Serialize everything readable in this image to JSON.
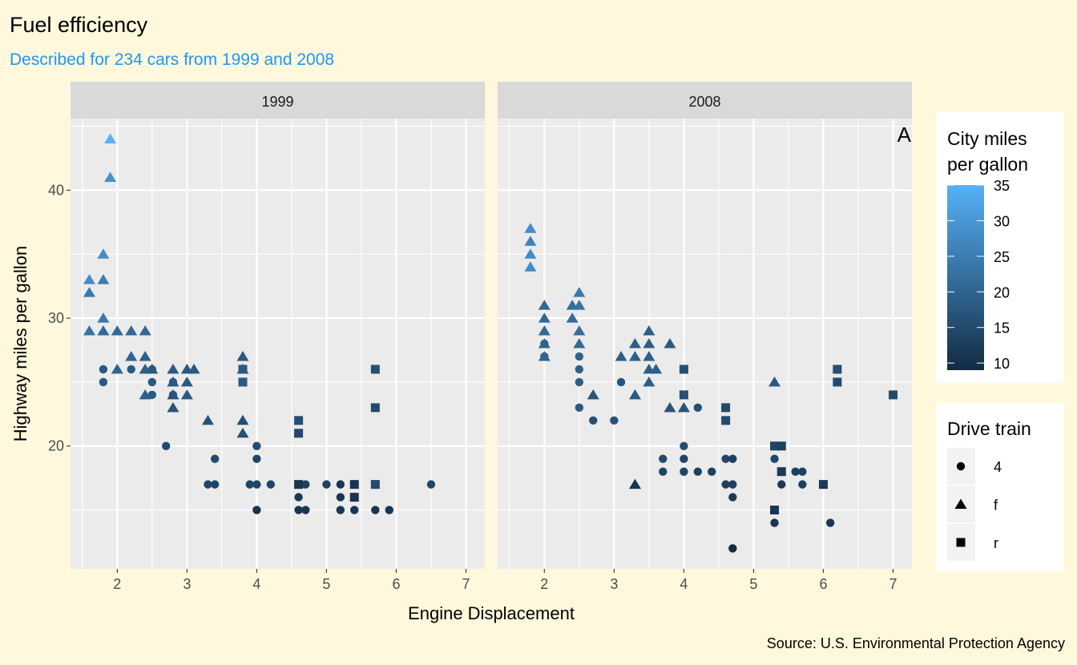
{
  "chart_data": {
    "type": "scatter",
    "title": "Fuel efficiency",
    "subtitle": "Described for 234 cars from 1999 and 2008",
    "xlabel": "Engine Displacement",
    "ylabel": "Highway miles per gallon",
    "caption": "Source: U.S. Environmental Protection Agency",
    "tag": "A",
    "xlim": [
      1.33,
      7.27
    ],
    "ylim": [
      10.4,
      45.6
    ],
    "x_ticks": [
      2,
      3,
      4,
      5,
      6,
      7
    ],
    "y_ticks": [
      20,
      30,
      40
    ],
    "grid": true,
    "colors": {
      "background": "#FFF8DC",
      "panel": "#EBEBEB",
      "strip": "#D9D9D9",
      "gradient_low": "#132B43",
      "gradient_high": "#56B1F7",
      "subtitle": "#2196F3"
    },
    "color_legend": {
      "title": [
        "City miles",
        "per gallon"
      ],
      "ticks": [
        10,
        15,
        20,
        25,
        30,
        35
      ],
      "limits": [
        9,
        35
      ],
      "placement": "right"
    },
    "shape_legend": {
      "title": "Drive train",
      "items": [
        {
          "label": "4",
          "shape": "circle"
        },
        {
          "label": "f",
          "shape": "triangle"
        },
        {
          "label": "r",
          "shape": "square"
        }
      ],
      "placement": "right"
    },
    "point_format": "[displ, hwy, cty]",
    "facets": [
      {
        "label": "1999",
        "series": {
          "f": [
            [
              1.9,
              44,
              35
            ],
            [
              1.9,
              41,
              29
            ],
            [
              1.8,
              35,
              28
            ],
            [
              1.6,
              33,
              28
            ],
            [
              1.8,
              33,
              25
            ],
            [
              1.6,
              32,
              24
            ],
            [
              1.8,
              30,
              24
            ],
            [
              1.6,
              29,
              23
            ],
            [
              1.8,
              29,
              21
            ],
            [
              2.0,
              29,
              21
            ],
            [
              2.2,
              29,
              21
            ],
            [
              2.4,
              29,
              21
            ],
            [
              2.2,
              27,
              20
            ],
            [
              2.4,
              27,
              19
            ],
            [
              2.0,
              26,
              20
            ],
            [
              2.4,
              26,
              19
            ],
            [
              2.5,
              26,
              18
            ],
            [
              2.8,
              26,
              18
            ],
            [
              3.0,
              26,
              18
            ],
            [
              3.1,
              26,
              18
            ],
            [
              2.4,
              24,
              19
            ],
            [
              2.8,
              24,
              17
            ],
            [
              3.0,
              24,
              18
            ],
            [
              2.8,
              25,
              18
            ],
            [
              3.0,
              25,
              18
            ],
            [
              2.8,
              23,
              17
            ],
            [
              3.3,
              22,
              17
            ],
            [
              3.8,
              27,
              18
            ],
            [
              3.8,
              26,
              18
            ],
            [
              3.8,
              22,
              16
            ],
            [
              3.8,
              21,
              16
            ]
          ],
          "4": [
            [
              1.8,
              26,
              18
            ],
            [
              1.8,
              25,
              18
            ],
            [
              2.2,
              26,
              18
            ],
            [
              2.5,
              26,
              18
            ],
            [
              2.5,
              25,
              18
            ],
            [
              2.5,
              24,
              18
            ],
            [
              2.8,
              25,
              17
            ],
            [
              2.8,
              24,
              17
            ],
            [
              2.7,
              20,
              15
            ],
            [
              3.4,
              19,
              15
            ],
            [
              3.3,
              17,
              14
            ],
            [
              3.4,
              17,
              14
            ],
            [
              4.0,
              20,
              15
            ],
            [
              4.0,
              19,
              14
            ],
            [
              3.9,
              17,
              14
            ],
            [
              4.0,
              17,
              14
            ],
            [
              4.2,
              17,
              14
            ],
            [
              4.0,
              15,
              11
            ],
            [
              4.6,
              17,
              13
            ],
            [
              4.6,
              16,
              12
            ],
            [
              4.6,
              15,
              11
            ],
            [
              4.7,
              17,
              13
            ],
            [
              4.7,
              15,
              11
            ],
            [
              5.0,
              17,
              13
            ],
            [
              5.2,
              17,
              11
            ],
            [
              5.2,
              16,
              11
            ],
            [
              5.2,
              15,
              11
            ],
            [
              5.4,
              15,
              11
            ],
            [
              5.7,
              15,
              11
            ],
            [
              5.9,
              15,
              11
            ],
            [
              6.5,
              17,
              14
            ]
          ],
          "r": [
            [
              3.8,
              26,
              18
            ],
            [
              3.8,
              25,
              18
            ],
            [
              4.6,
              22,
              16
            ],
            [
              4.6,
              21,
              15
            ],
            [
              5.7,
              26,
              16
            ],
            [
              5.7,
              23,
              15
            ],
            [
              4.6,
              17,
              11
            ],
            [
              5.4,
              17,
              11
            ],
            [
              5.4,
              16,
              11
            ],
            [
              5.7,
              17,
              15
            ]
          ]
        }
      },
      {
        "label": "2008",
        "series": {
          "f": [
            [
              1.8,
              37,
              28
            ],
            [
              1.8,
              36,
              26
            ],
            [
              1.8,
              35,
              28
            ],
            [
              1.8,
              34,
              28
            ],
            [
              2.0,
              31,
              21
            ],
            [
              2.0,
              30,
              21
            ],
            [
              2.0,
              29,
              21
            ],
            [
              2.0,
              28,
              20
            ],
            [
              2.0,
              27,
              20
            ],
            [
              2.4,
              31,
              22
            ],
            [
              2.5,
              31,
              23
            ],
            [
              2.5,
              32,
              24
            ],
            [
              2.4,
              30,
              22
            ],
            [
              2.5,
              29,
              22
            ],
            [
              2.5,
              28,
              21
            ],
            [
              2.7,
              24,
              17
            ],
            [
              3.1,
              27,
              19
            ],
            [
              3.3,
              28,
              19
            ],
            [
              3.3,
              27,
              19
            ],
            [
              3.3,
              24,
              18
            ],
            [
              3.5,
              29,
              19
            ],
            [
              3.5,
              28,
              19
            ],
            [
              3.5,
              27,
              19
            ],
            [
              3.5,
              26,
              19
            ],
            [
              3.6,
              26,
              19
            ],
            [
              3.5,
              25,
              19
            ],
            [
              3.8,
              28,
              18
            ],
            [
              3.8,
              23,
              17
            ],
            [
              4.0,
              23,
              17
            ],
            [
              5.3,
              25,
              18
            ],
            [
              3.3,
              17,
              11
            ]
          ],
          "4": [
            [
              2.0,
              28,
              19
            ],
            [
              2.0,
              27,
              19
            ],
            [
              2.5,
              27,
              20
            ],
            [
              2.5,
              26,
              19
            ],
            [
              2.5,
              25,
              19
            ],
            [
              2.5,
              23,
              18
            ],
            [
              2.7,
              22,
              16
            ],
            [
              3.0,
              22,
              17
            ],
            [
              3.1,
              25,
              17
            ],
            [
              4.2,
              23,
              16
            ],
            [
              4.0,
              20,
              15
            ],
            [
              3.7,
              19,
              15
            ],
            [
              4.0,
              19,
              14
            ],
            [
              3.7,
              18,
              14
            ],
            [
              4.0,
              18,
              14
            ],
            [
              4.2,
              18,
              13
            ],
            [
              4.4,
              18,
              13
            ],
            [
              4.6,
              19,
              14
            ],
            [
              4.7,
              19,
              13
            ],
            [
              4.6,
              17,
              13
            ],
            [
              4.7,
              17,
              13
            ],
            [
              4.7,
              16,
              12
            ],
            [
              4.7,
              12,
              9
            ],
            [
              5.3,
              19,
              14
            ],
            [
              5.3,
              14,
              11
            ],
            [
              5.4,
              17,
              12
            ],
            [
              5.6,
              18,
              13
            ],
            [
              5.7,
              18,
              13
            ],
            [
              5.7,
              17,
              13
            ],
            [
              6.1,
              14,
              11
            ]
          ],
          "r": [
            [
              4.0,
              26,
              16
            ],
            [
              4.0,
              24,
              16
            ],
            [
              4.6,
              23,
              15
            ],
            [
              4.6,
              22,
              15
            ],
            [
              5.3,
              20,
              14
            ],
            [
              5.4,
              20,
              13
            ],
            [
              5.4,
              18,
              12
            ],
            [
              6.0,
              17,
              12
            ],
            [
              5.3,
              15,
              11
            ],
            [
              6.2,
              26,
              16
            ],
            [
              6.2,
              25,
              15
            ],
            [
              7.0,
              24,
              15
            ]
          ]
        }
      }
    ]
  }
}
